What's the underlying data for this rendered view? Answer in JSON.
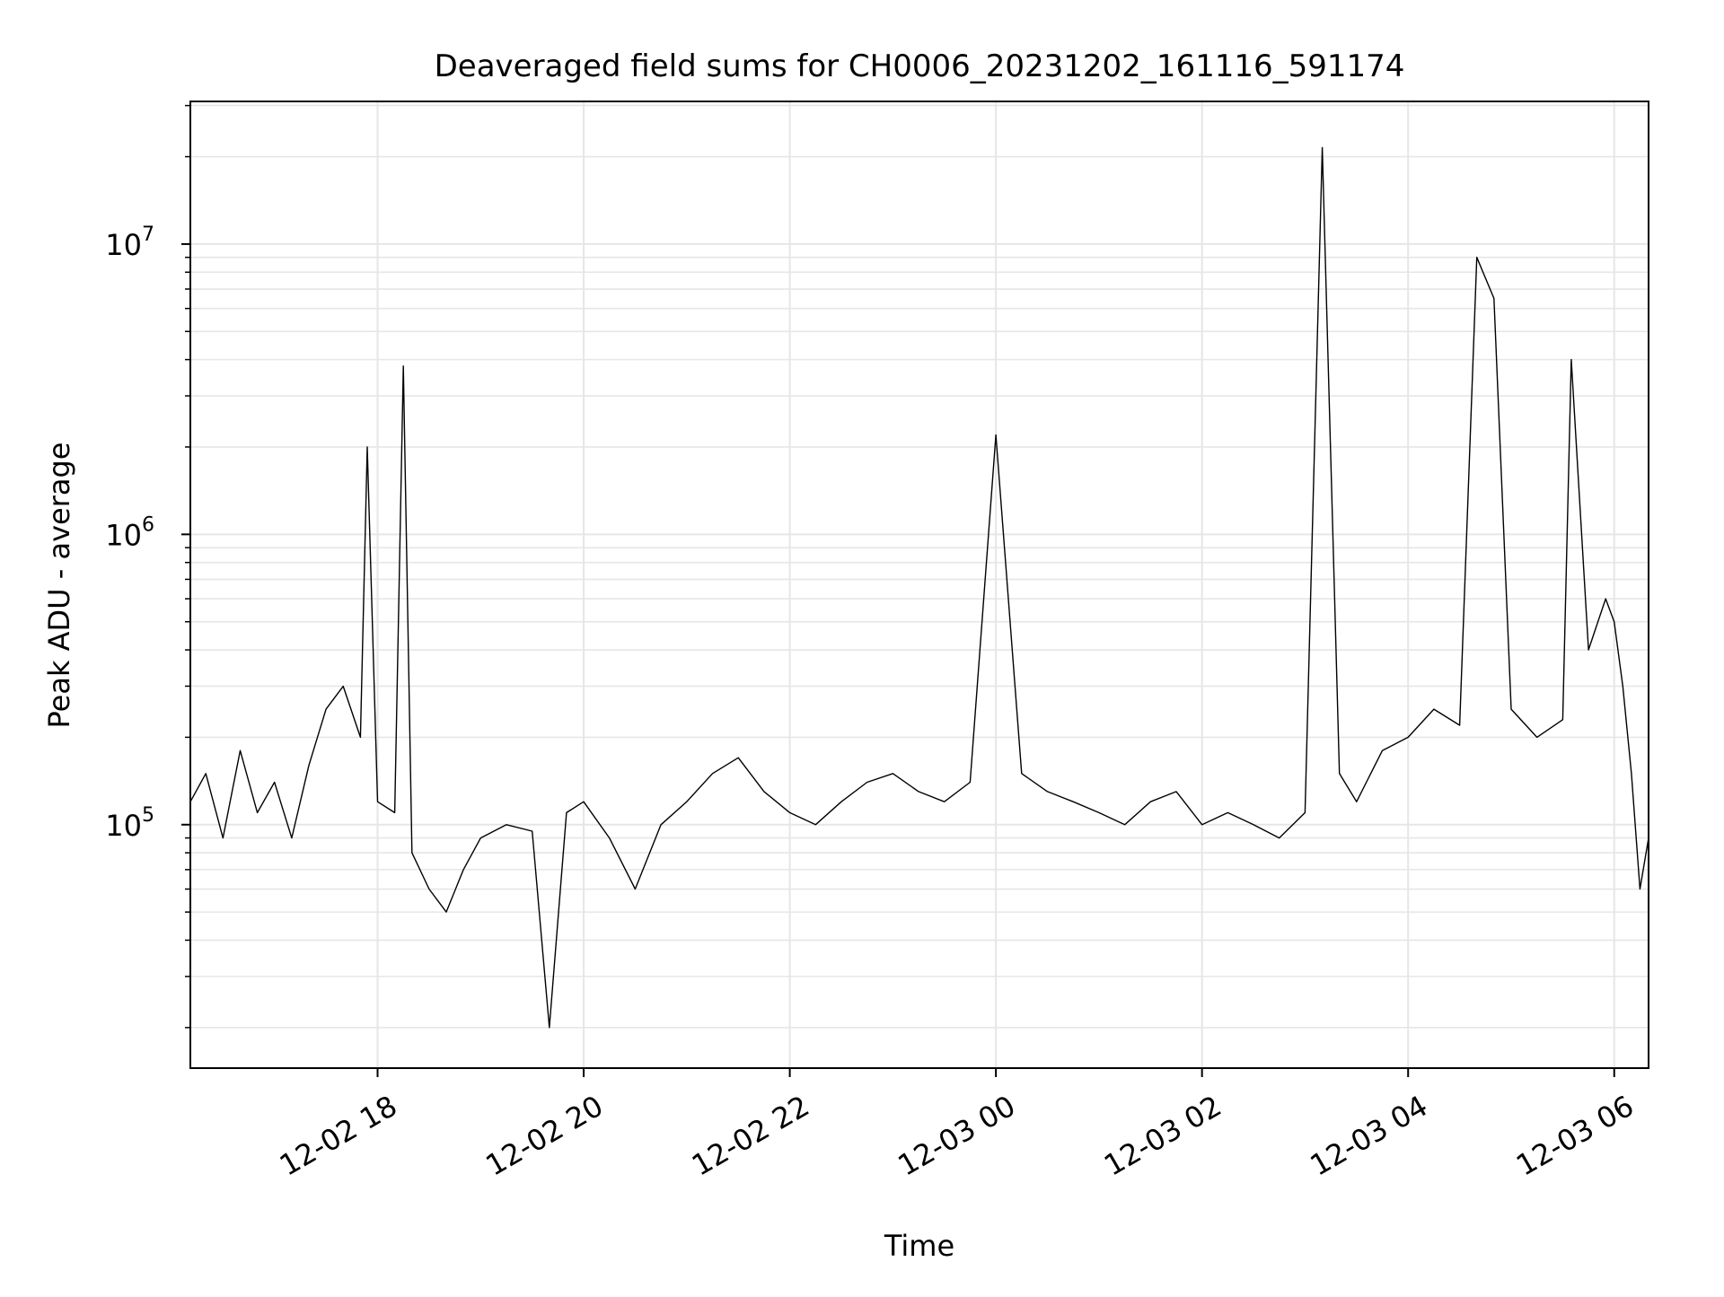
{
  "chart_data": {
    "type": "line",
    "title": "Deaveraged field sums for CH0006_20231202_161116_591174",
    "xlabel": "Time",
    "ylabel": "Peak ADU - average",
    "xlim": [
      "2023-12-02 16:11",
      "2023-12-03 06:20"
    ],
    "ylim": [
      14500,
      31000000
    ],
    "yscale": "log",
    "grid": true,
    "line_color": "#000000",
    "grid_color": "#e6e6e6",
    "x_ticks": [
      {
        "t": "2023-12-02 18:00",
        "label": "12-02 18"
      },
      {
        "t": "2023-12-02 20:00",
        "label": "12-02 20"
      },
      {
        "t": "2023-12-02 22:00",
        "label": "12-02 22"
      },
      {
        "t": "2023-12-03 00:00",
        "label": "12-03 00"
      },
      {
        "t": "2023-12-03 02:00",
        "label": "12-03 02"
      },
      {
        "t": "2023-12-03 04:00",
        "label": "12-03 04"
      },
      {
        "t": "2023-12-03 06:00",
        "label": "12-03 06"
      }
    ],
    "y_ticks": [
      {
        "value": 100000,
        "base": "10",
        "exp": "5"
      },
      {
        "value": 1000000,
        "base": "10",
        "exp": "6"
      },
      {
        "value": 10000000,
        "base": "10",
        "exp": "7"
      }
    ],
    "series": [
      {
        "points": [
          [
            "2023-12-02 16:11",
            120000
          ],
          [
            "2023-12-02 16:20",
            150000
          ],
          [
            "2023-12-02 16:30",
            90000
          ],
          [
            "2023-12-02 16:40",
            180000
          ],
          [
            "2023-12-02 16:50",
            110000
          ],
          [
            "2023-12-02 17:00",
            140000
          ],
          [
            "2023-12-02 17:10",
            90000
          ],
          [
            "2023-12-02 17:20",
            160000
          ],
          [
            "2023-12-02 17:30",
            250000
          ],
          [
            "2023-12-02 17:40",
            300000
          ],
          [
            "2023-12-02 17:50",
            200000
          ],
          [
            "2023-12-02 17:54",
            2000000
          ],
          [
            "2023-12-02 18:00",
            120000
          ],
          [
            "2023-12-02 18:10",
            110000
          ],
          [
            "2023-12-02 18:15",
            3800000
          ],
          [
            "2023-12-02 18:20",
            80000
          ],
          [
            "2023-12-02 18:30",
            60000
          ],
          [
            "2023-12-02 18:40",
            50000
          ],
          [
            "2023-12-02 18:50",
            70000
          ],
          [
            "2023-12-02 19:00",
            90000
          ],
          [
            "2023-12-02 19:15",
            100000
          ],
          [
            "2023-12-02 19:30",
            95000
          ],
          [
            "2023-12-02 19:40",
            20000
          ],
          [
            "2023-12-02 19:50",
            110000
          ],
          [
            "2023-12-02 20:00",
            120000
          ],
          [
            "2023-12-02 20:15",
            90000
          ],
          [
            "2023-12-02 20:30",
            60000
          ],
          [
            "2023-12-02 20:45",
            100000
          ],
          [
            "2023-12-02 21:00",
            120000
          ],
          [
            "2023-12-02 21:15",
            150000
          ],
          [
            "2023-12-02 21:30",
            170000
          ],
          [
            "2023-12-02 21:45",
            130000
          ],
          [
            "2023-12-02 22:00",
            110000
          ],
          [
            "2023-12-02 22:15",
            100000
          ],
          [
            "2023-12-02 22:30",
            120000
          ],
          [
            "2023-12-02 22:45",
            140000
          ],
          [
            "2023-12-02 23:00",
            150000
          ],
          [
            "2023-12-02 23:15",
            130000
          ],
          [
            "2023-12-02 23:30",
            120000
          ],
          [
            "2023-12-02 23:45",
            140000
          ],
          [
            "2023-12-03 00:00",
            2200000
          ],
          [
            "2023-12-03 00:15",
            150000
          ],
          [
            "2023-12-03 00:30",
            130000
          ],
          [
            "2023-12-03 00:45",
            120000
          ],
          [
            "2023-12-03 01:00",
            110000
          ],
          [
            "2023-12-03 01:15",
            100000
          ],
          [
            "2023-12-03 01:30",
            120000
          ],
          [
            "2023-12-03 01:45",
            130000
          ],
          [
            "2023-12-03 02:00",
            100000
          ],
          [
            "2023-12-03 02:15",
            110000
          ],
          [
            "2023-12-03 02:30",
            100000
          ],
          [
            "2023-12-03 02:45",
            90000
          ],
          [
            "2023-12-03 03:00",
            110000
          ],
          [
            "2023-12-03 03:10",
            21500000
          ],
          [
            "2023-12-03 03:20",
            150000
          ],
          [
            "2023-12-03 03:30",
            120000
          ],
          [
            "2023-12-03 03:45",
            180000
          ],
          [
            "2023-12-03 04:00",
            200000
          ],
          [
            "2023-12-03 04:15",
            250000
          ],
          [
            "2023-12-03 04:30",
            220000
          ],
          [
            "2023-12-03 04:40",
            9000000
          ],
          [
            "2023-12-03 04:50",
            6500000
          ],
          [
            "2023-12-03 05:00",
            250000
          ],
          [
            "2023-12-03 05:15",
            200000
          ],
          [
            "2023-12-03 05:30",
            230000
          ],
          [
            "2023-12-03 05:35",
            4000000
          ],
          [
            "2023-12-03 05:45",
            400000
          ],
          [
            "2023-12-03 05:55",
            600000
          ],
          [
            "2023-12-03 06:00",
            500000
          ],
          [
            "2023-12-03 06:05",
            300000
          ],
          [
            "2023-12-03 06:10",
            150000
          ],
          [
            "2023-12-03 06:15",
            60000
          ],
          [
            "2023-12-03 06:20",
            90000
          ]
        ]
      }
    ]
  }
}
